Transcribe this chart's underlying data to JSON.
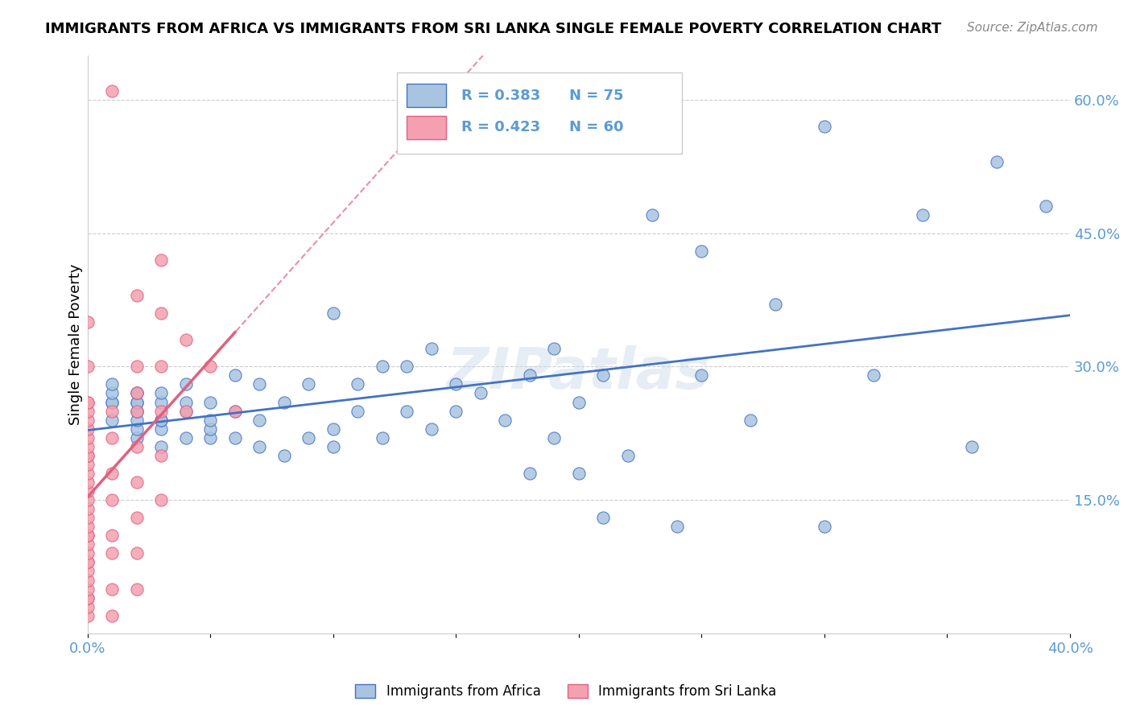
{
  "title": "IMMIGRANTS FROM AFRICA VS IMMIGRANTS FROM SRI LANKA SINGLE FEMALE POVERTY CORRELATION CHART",
  "source": "Source: ZipAtlas.com",
  "xlabel": "",
  "ylabel": "Single Female Poverty",
  "xlim": [
    0.0,
    0.4
  ],
  "ylim": [
    0.0,
    0.65
  ],
  "xticks": [
    0.0,
    0.05,
    0.1,
    0.15,
    0.2,
    0.25,
    0.3,
    0.35,
    0.4
  ],
  "xtick_labels": [
    "0.0%",
    "",
    "",
    "",
    "",
    "",
    "",
    "",
    "40.0%"
  ],
  "ytick_positions": [
    0.0,
    0.15,
    0.3,
    0.45,
    0.6
  ],
  "ytick_labels": [
    "",
    "15.0%",
    "30.0%",
    "45.0%",
    "60.0%"
  ],
  "legend_R_africa": "R = 0.383",
  "legend_N_africa": "N = 75",
  "legend_R_srilanka": "R = 0.423",
  "legend_N_srilanka": "N = 60",
  "africa_color": "#a8c4e0",
  "srilanka_color": "#f4a0b0",
  "africa_line_color": "#4472c4",
  "srilanka_line_color": "#e06080",
  "watermark": "ZIPatlas",
  "africa_points_x": [
    0.01,
    0.01,
    0.01,
    0.01,
    0.01,
    0.02,
    0.02,
    0.02,
    0.02,
    0.02,
    0.02,
    0.02,
    0.02,
    0.02,
    0.03,
    0.03,
    0.03,
    0.03,
    0.03,
    0.03,
    0.04,
    0.04,
    0.04,
    0.04,
    0.05,
    0.05,
    0.05,
    0.05,
    0.06,
    0.06,
    0.06,
    0.07,
    0.07,
    0.07,
    0.08,
    0.08,
    0.09,
    0.09,
    0.1,
    0.1,
    0.1,
    0.11,
    0.11,
    0.12,
    0.12,
    0.13,
    0.13,
    0.14,
    0.14,
    0.15,
    0.15,
    0.16,
    0.17,
    0.18,
    0.18,
    0.19,
    0.19,
    0.2,
    0.2,
    0.21,
    0.21,
    0.22,
    0.23,
    0.24,
    0.25,
    0.25,
    0.27,
    0.28,
    0.3,
    0.3,
    0.32,
    0.34,
    0.36,
    0.37,
    0.39
  ],
  "africa_points_y": [
    0.24,
    0.26,
    0.26,
    0.27,
    0.28,
    0.22,
    0.23,
    0.24,
    0.25,
    0.25,
    0.26,
    0.26,
    0.27,
    0.27,
    0.21,
    0.23,
    0.24,
    0.24,
    0.26,
    0.27,
    0.22,
    0.25,
    0.26,
    0.28,
    0.22,
    0.23,
    0.24,
    0.26,
    0.22,
    0.25,
    0.29,
    0.21,
    0.24,
    0.28,
    0.2,
    0.26,
    0.22,
    0.28,
    0.21,
    0.23,
    0.36,
    0.25,
    0.28,
    0.22,
    0.3,
    0.25,
    0.3,
    0.23,
    0.32,
    0.25,
    0.28,
    0.27,
    0.24,
    0.18,
    0.29,
    0.22,
    0.32,
    0.18,
    0.26,
    0.13,
    0.29,
    0.2,
    0.47,
    0.12,
    0.29,
    0.43,
    0.24,
    0.37,
    0.12,
    0.57,
    0.29,
    0.47,
    0.21,
    0.53,
    0.48
  ],
  "srilanka_points_x": [
    0.0,
    0.0,
    0.0,
    0.0,
    0.0,
    0.0,
    0.0,
    0.0,
    0.0,
    0.0,
    0.0,
    0.0,
    0.0,
    0.0,
    0.0,
    0.0,
    0.0,
    0.0,
    0.0,
    0.0,
    0.0,
    0.0,
    0.0,
    0.0,
    0.0,
    0.0,
    0.0,
    0.0,
    0.0,
    0.0,
    0.0,
    0.0,
    0.01,
    0.01,
    0.01,
    0.01,
    0.01,
    0.01,
    0.01,
    0.01,
    0.01,
    0.02,
    0.02,
    0.02,
    0.02,
    0.02,
    0.02,
    0.02,
    0.02,
    0.02,
    0.03,
    0.03,
    0.03,
    0.03,
    0.03,
    0.03,
    0.04,
    0.04,
    0.05,
    0.06
  ],
  "srilanka_points_y": [
    0.02,
    0.03,
    0.04,
    0.04,
    0.05,
    0.06,
    0.07,
    0.08,
    0.08,
    0.09,
    0.1,
    0.11,
    0.11,
    0.12,
    0.13,
    0.14,
    0.15,
    0.16,
    0.17,
    0.18,
    0.19,
    0.2,
    0.2,
    0.21,
    0.22,
    0.23,
    0.24,
    0.25,
    0.26,
    0.26,
    0.3,
    0.35,
    0.02,
    0.05,
    0.09,
    0.11,
    0.15,
    0.18,
    0.22,
    0.25,
    0.61,
    0.05,
    0.09,
    0.13,
    0.17,
    0.21,
    0.25,
    0.27,
    0.3,
    0.38,
    0.15,
    0.2,
    0.25,
    0.3,
    0.36,
    0.42,
    0.25,
    0.33,
    0.3,
    0.25
  ]
}
